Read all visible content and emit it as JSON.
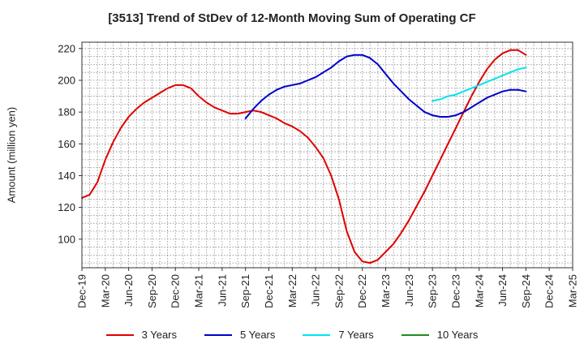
{
  "chart_data": {
    "type": "line",
    "title": "[3513]  Trend of StDev of 12-Month Moving Sum of Operating CF",
    "xlabel": "",
    "ylabel": "Amount (million yen)",
    "ylim": [
      82,
      224
    ],
    "yticks": [
      100,
      120,
      140,
      160,
      180,
      200,
      220
    ],
    "xlim": [
      "2019-12",
      "2025-03"
    ],
    "x_ticks": [
      "Dec-19",
      "Mar-20",
      "Jun-20",
      "Sep-20",
      "Dec-20",
      "Mar-21",
      "Jun-21",
      "Sep-21",
      "Dec-21",
      "Mar-22",
      "Jun-22",
      "Sep-22",
      "Dec-22",
      "Mar-23",
      "Jun-23",
      "Sep-23",
      "Dec-23",
      "Mar-24",
      "Jun-24",
      "Sep-24",
      "Dec-24",
      "Mar-25"
    ],
    "grid": true,
    "legend_position": "bottom",
    "series": [
      {
        "name": "3 Years",
        "color": "#e00000",
        "x": [
          "2019-12",
          "2020-01",
          "2020-02",
          "2020-03",
          "2020-04",
          "2020-05",
          "2020-06",
          "2020-07",
          "2020-08",
          "2020-09",
          "2020-10",
          "2020-11",
          "2020-12",
          "2021-01",
          "2021-02",
          "2021-03",
          "2021-04",
          "2021-05",
          "2021-06",
          "2021-07",
          "2021-08",
          "2021-09",
          "2021-10",
          "2021-11",
          "2021-12",
          "2022-01",
          "2022-02",
          "2022-03",
          "2022-04",
          "2022-05",
          "2022-06",
          "2022-07",
          "2022-08",
          "2022-09",
          "2022-10",
          "2022-11",
          "2022-12",
          "2023-01",
          "2023-02",
          "2023-03",
          "2023-04",
          "2023-05",
          "2023-06",
          "2023-07",
          "2023-08",
          "2023-09",
          "2023-10",
          "2023-11",
          "2023-12",
          "2024-01",
          "2024-02",
          "2024-03",
          "2024-04",
          "2024-05",
          "2024-06",
          "2024-07",
          "2024-08",
          "2024-09"
        ],
        "y": [
          126,
          128,
          136,
          150,
          161,
          170,
          177,
          182,
          186,
          189,
          192,
          195,
          197,
          197,
          195,
          190,
          186,
          183,
          181,
          179,
          179,
          180,
          181,
          180,
          178,
          176,
          173,
          171,
          168,
          164,
          158,
          151,
          140,
          125,
          105,
          92,
          86,
          85,
          87,
          92,
          97,
          104,
          112,
          121,
          130,
          140,
          150,
          160,
          170,
          180,
          190,
          199,
          207,
          213,
          217,
          219,
          219,
          216
        ]
      },
      {
        "name": "5 Years",
        "color": "#0000cc",
        "x": [
          "2021-09",
          "2021-10",
          "2021-11",
          "2021-12",
          "2022-01",
          "2022-02",
          "2022-03",
          "2022-04",
          "2022-05",
          "2022-06",
          "2022-07",
          "2022-08",
          "2022-09",
          "2022-10",
          "2022-11",
          "2022-12",
          "2023-01",
          "2023-02",
          "2023-03",
          "2023-04",
          "2023-05",
          "2023-06",
          "2023-07",
          "2023-08",
          "2023-09",
          "2023-10",
          "2023-11",
          "2023-12",
          "2024-01",
          "2024-02",
          "2024-03",
          "2024-04",
          "2024-05",
          "2024-06",
          "2024-07",
          "2024-08",
          "2024-09"
        ],
        "y": [
          176,
          182,
          187,
          191,
          194,
          196,
          197,
          198,
          200,
          202,
          205,
          208,
          212,
          215,
          216,
          216,
          214,
          210,
          204,
          198,
          193,
          188,
          184,
          180,
          178,
          177,
          177,
          178,
          180,
          183,
          186,
          189,
          191,
          193,
          194,
          194,
          193
        ]
      },
      {
        "name": "7 Years",
        "color": "#00e5ee",
        "x": [
          "2023-09",
          "2023-10",
          "2023-11",
          "2023-12",
          "2024-01",
          "2024-02",
          "2024-03",
          "2024-04",
          "2024-05",
          "2024-06",
          "2024-07",
          "2024-08",
          "2024-09"
        ],
        "y": [
          187,
          188,
          190,
          191,
          193,
          195,
          197,
          199,
          201,
          203,
          205,
          207,
          208
        ]
      },
      {
        "name": "10 Years",
        "color": "#228b22",
        "x": [],
        "y": []
      }
    ]
  }
}
